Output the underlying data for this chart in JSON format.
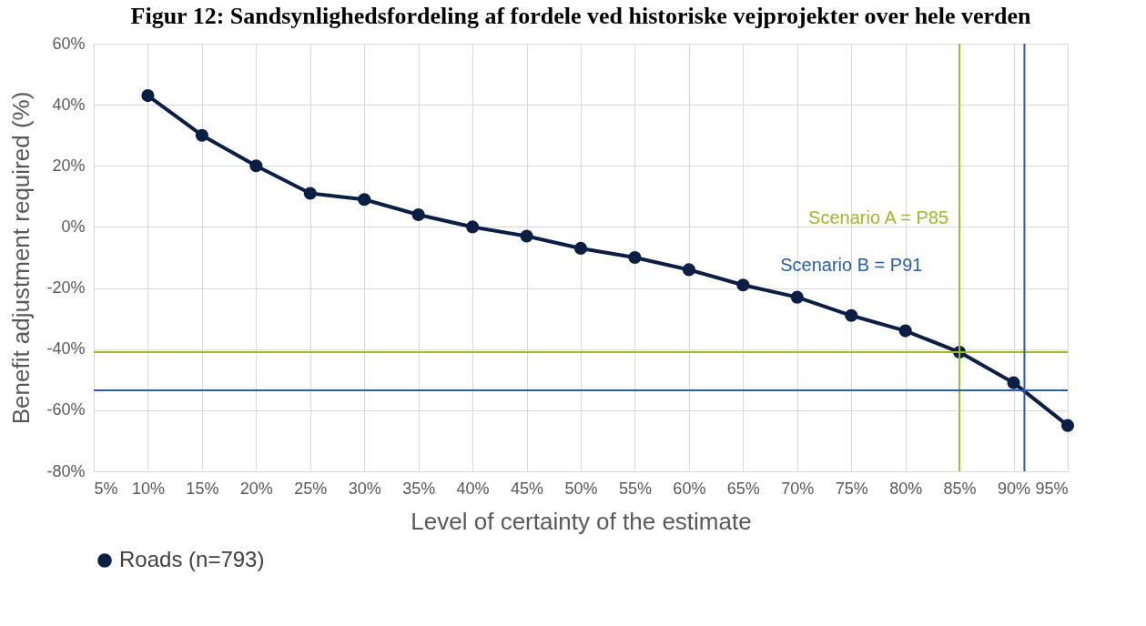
{
  "chart_data": {
    "type": "line",
    "title": "Figur 12: Sandsynlighedsfordeling af fordele ved historiske vejprojekter over hele verden",
    "xlabel": "Level of certainty of the estimate",
    "ylabel": "Benefit adjustment required (%)",
    "x": [
      10,
      15,
      20,
      25,
      30,
      35,
      40,
      45,
      50,
      55,
      60,
      65,
      70,
      75,
      80,
      85,
      90,
      95
    ],
    "series": [
      {
        "name": "Roads (n=793)",
        "color": "#0b1f45",
        "values": [
          43,
          30,
          20,
          11,
          9,
          4,
          0,
          -3,
          -7,
          -10,
          -14,
          -19,
          -23,
          -29,
          -34,
          -41,
          -51,
          -65
        ]
      }
    ],
    "xlim": [
      5,
      95
    ],
    "ylim": [
      -80,
      60
    ],
    "xticks": [
      {
        "value": 5,
        "label": "5%"
      },
      {
        "value": 10,
        "label": "10%"
      },
      {
        "value": 15,
        "label": "15%"
      },
      {
        "value": 20,
        "label": "20%"
      },
      {
        "value": 25,
        "label": "25%"
      },
      {
        "value": 30,
        "label": "30%"
      },
      {
        "value": 35,
        "label": "35%"
      },
      {
        "value": 40,
        "label": "40%"
      },
      {
        "value": 45,
        "label": "45%"
      },
      {
        "value": 50,
        "label": "50%"
      },
      {
        "value": 55,
        "label": "55%"
      },
      {
        "value": 60,
        "label": "60%"
      },
      {
        "value": 65,
        "label": "65%"
      },
      {
        "value": 70,
        "label": "70%"
      },
      {
        "value": 75,
        "label": "75%"
      },
      {
        "value": 80,
        "label": "80%"
      },
      {
        "value": 85,
        "label": "85%"
      },
      {
        "value": 90,
        "label": "90%"
      },
      {
        "value": 95,
        "label": "95%"
      }
    ],
    "yticks": [
      {
        "value": -80,
        "label": "-80%"
      },
      {
        "value": -60,
        "label": "-60%"
      },
      {
        "value": -40,
        "label": "-40%"
      },
      {
        "value": -20,
        "label": "-20%"
      },
      {
        "value": 0,
        "label": "0%"
      },
      {
        "value": 20,
        "label": "20%"
      },
      {
        "value": 40,
        "label": "40%"
      },
      {
        "value": 60,
        "label": "60%"
      }
    ],
    "ref_lines": [
      {
        "axis": "y",
        "value": -41,
        "color": "#9bbb2a"
      },
      {
        "axis": "x",
        "value": 85,
        "label": "Scenario A = P85",
        "color": "#9bbb2a"
      },
      {
        "axis": "y",
        "value": -53.5,
        "color": "#2a5ca8"
      },
      {
        "axis": "x",
        "value": 91,
        "label": "Scenario B = P91",
        "color": "#2a5ca8"
      }
    ],
    "grid": true,
    "legend": "bottom",
    "marker": "circle",
    "line_style": "solid"
  }
}
